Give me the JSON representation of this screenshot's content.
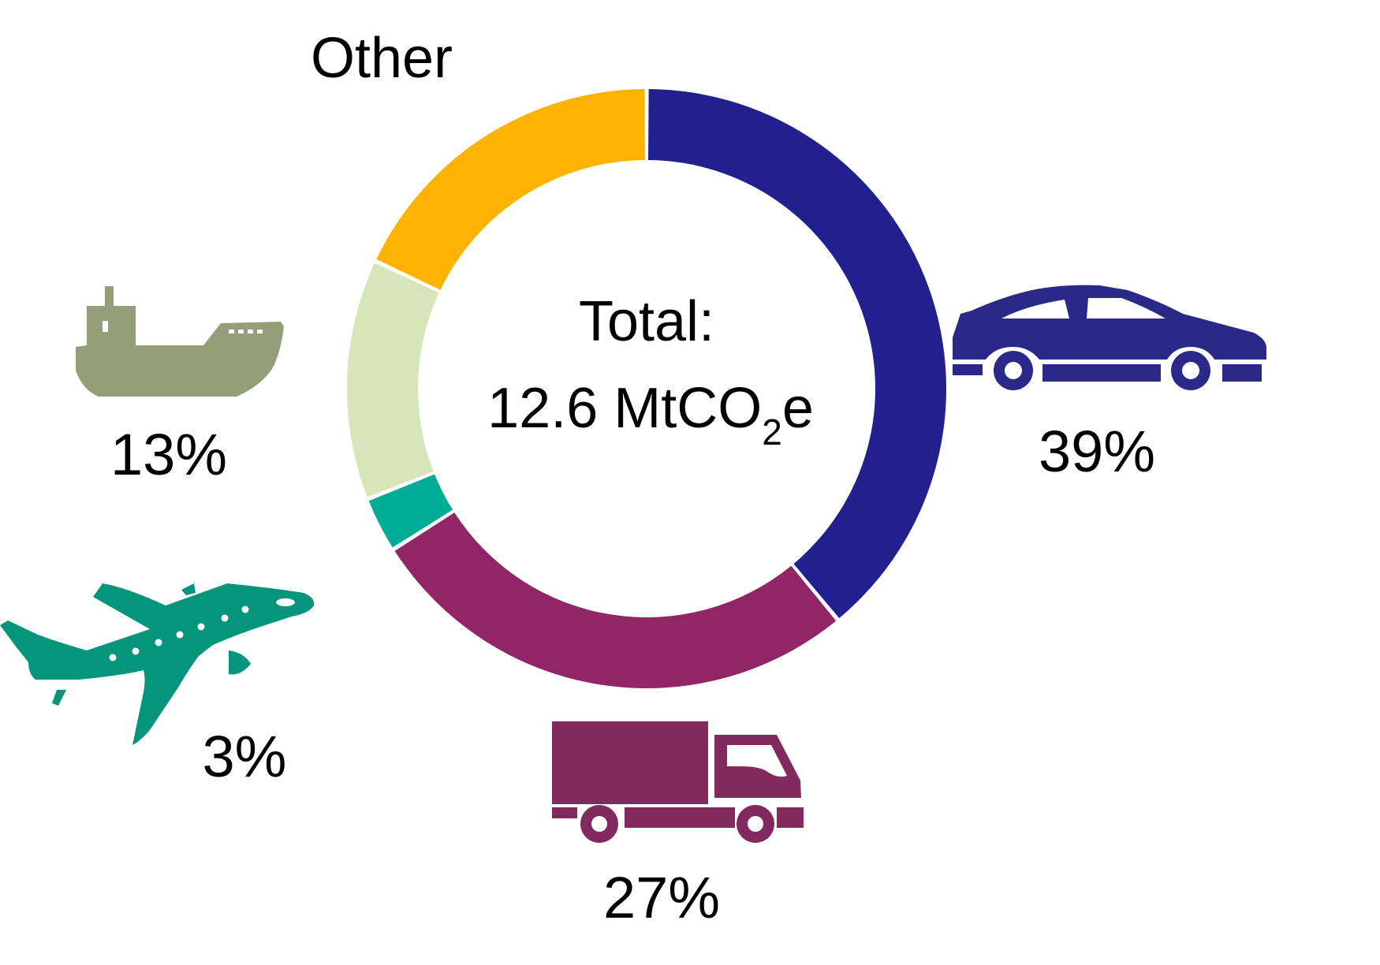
{
  "chart_data": {
    "type": "donut",
    "title": "",
    "center_text": {
      "line1": "Total:",
      "value": "12.6",
      "unit_prefix": "MtCO",
      "unit_subscript": "2",
      "unit_suffix": "e"
    },
    "slices": [
      {
        "label": "",
        "value": 39,
        "display": "39%",
        "color": "#22208E",
        "icon": "car-icon",
        "icon_color": "#2A2889"
      },
      {
        "label": "",
        "value": 27,
        "display": "27%",
        "color": "#912565",
        "icon": "truck-icon",
        "icon_color": "#822A5E"
      },
      {
        "label": "",
        "value": 3,
        "display": "3%",
        "color": "#00AC96",
        "icon": "airplane-icon",
        "icon_color": "#04957C"
      },
      {
        "label": "",
        "value": 13,
        "display": "13%",
        "color": "#D6E6B8",
        "icon": "ship-icon",
        "icon_color": "#939F77"
      },
      {
        "label": "Other",
        "value": 18,
        "display": "",
        "color": "#FFB300",
        "icon": "",
        "icon_color": ""
      }
    ]
  }
}
